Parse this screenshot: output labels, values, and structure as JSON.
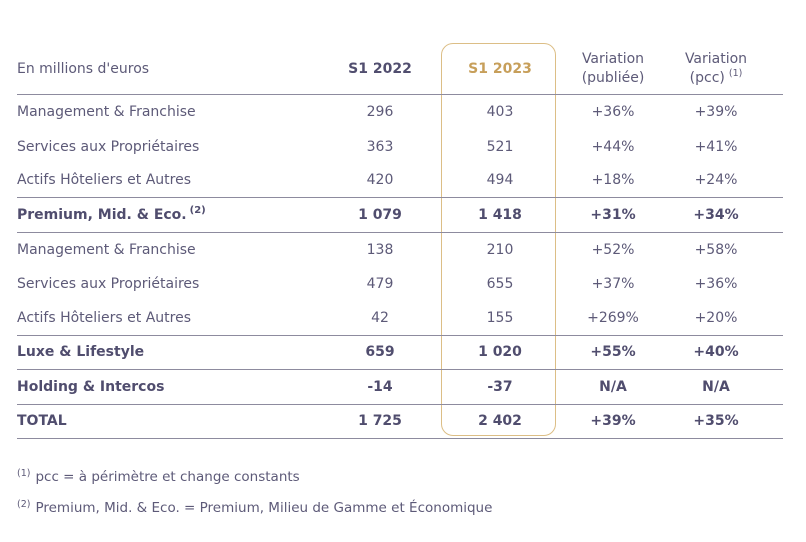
{
  "colors": {
    "text": "#5d5a78",
    "text_bold": "#504d6e",
    "accent_gold_text": "#c79f5a",
    "accent_gold_border": "#dcbe86",
    "rule_line": "#8d8b9e",
    "background": "#ffffff"
  },
  "table": {
    "unit_label": "En millions d'euros",
    "header": {
      "s1_2022": "S1 2022",
      "s1_2023": "S1 2023",
      "var_pub_line1": "Variation",
      "var_pub_line2": "(publiée)",
      "var_pcc_line1": "Variation",
      "var_pcc_line2": "(pcc)",
      "var_pcc_sup": "(1)"
    },
    "rows": [
      {
        "label": "Management & Franchise",
        "s1_2022": "296",
        "s1_2023": "403",
        "var_pub": "+36%",
        "var_pcc": "+39%",
        "bold": false,
        "rule_below": false
      },
      {
        "label": "Services aux Propriétaires",
        "s1_2022": "363",
        "s1_2023": "521",
        "var_pub": "+44%",
        "var_pcc": "+41%",
        "bold": false,
        "rule_below": false
      },
      {
        "label": "Actifs Hôteliers et Autres",
        "s1_2022": "420",
        "s1_2023": "494",
        "var_pub": "+18%",
        "var_pcc": "+24%",
        "bold": false,
        "rule_below": true
      },
      {
        "label": "Premium, Mid. & Eco.",
        "label_sup": "(2)",
        "s1_2022": "1 079",
        "s1_2023": "1 418",
        "var_pub": "+31%",
        "var_pcc": "+34%",
        "bold": true,
        "rule_below": true
      },
      {
        "label": "Management & Franchise",
        "s1_2022": "138",
        "s1_2023": "210",
        "var_pub": "+52%",
        "var_pcc": "+58%",
        "bold": false,
        "rule_below": false
      },
      {
        "label": "Services aux Propriétaires",
        "s1_2022": "479",
        "s1_2023": "655",
        "var_pub": "+37%",
        "var_pcc": "+36%",
        "bold": false,
        "rule_below": false
      },
      {
        "label": "Actifs Hôteliers et Autres",
        "s1_2022": "42",
        "s1_2023": "155",
        "var_pub": "+269%",
        "var_pcc": "+20%",
        "bold": false,
        "rule_below": true
      },
      {
        "label": "Luxe & Lifestyle",
        "s1_2022": "659",
        "s1_2023": "1 020",
        "var_pub": "+55%",
        "var_pcc": "+40%",
        "bold": true,
        "rule_below": true
      },
      {
        "label": "Holding & Intercos",
        "s1_2022": "-14",
        "s1_2023": "-37",
        "var_pub": "N/A",
        "var_pcc": "N/A",
        "bold": true,
        "rule_below": true
      },
      {
        "label": "TOTAL",
        "s1_2022": "1 725",
        "s1_2023": "2 402",
        "var_pub": "+39%",
        "var_pcc": "+35%",
        "bold": true,
        "rule_below": true
      }
    ]
  },
  "footnotes": [
    {
      "sup": "(1)",
      "text": "pcc = à périmètre et change constants"
    },
    {
      "sup": "(2)",
      "text": "Premium, Mid. & Eco. = Premium, Milieu de Gamme et Économique"
    }
  ]
}
